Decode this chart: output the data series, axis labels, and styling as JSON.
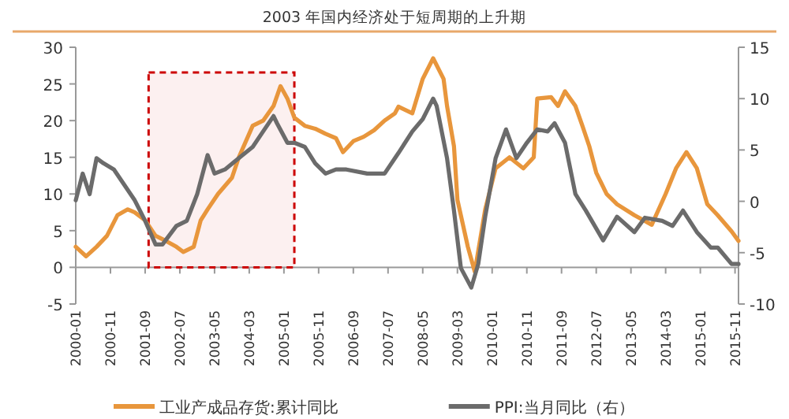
{
  "chart_data": {
    "type": "line",
    "title": "2003 年国内经济处于短周期的上升期",
    "xlim": [
      "2000-01",
      "2015-12"
    ],
    "xticks": [
      "2000-01",
      "2000-11",
      "2001-09",
      "2002-07",
      "2003-05",
      "2004-03",
      "2005-01",
      "2005-11",
      "2006-09",
      "2007-07",
      "2008-05",
      "2009-03",
      "2010-01",
      "2010-11",
      "2011-09",
      "2012-07",
      "2013-05",
      "2014-03",
      "2015-01",
      "2015-11"
    ],
    "ylim": [
      -5,
      30
    ],
    "yticks": [
      -5,
      0,
      5,
      10,
      15,
      20,
      25,
      30
    ],
    "y2lim": [
      -10,
      15
    ],
    "y2ticks": [
      -10,
      -5,
      0,
      5,
      10,
      15
    ],
    "legend": "bottom",
    "marker": "none",
    "line_style": "solid",
    "bands": [
      {
        "axis": "x",
        "from": "2001-10",
        "to": "2005-04",
        "color": "#cc0000"
      }
    ],
    "series": [
      {
        "name": "工业产成品存货:累计同比",
        "color": "#e8963c",
        "x": [
          "2000-01",
          "2000-04",
          "2000-07",
          "2000-10",
          "2001-01",
          "2001-04",
          "2001-06",
          "2001-09",
          "2001-12",
          "2002-03",
          "2002-06",
          "2002-08",
          "2002-11",
          "2003-01",
          "2003-03",
          "2003-06",
          "2003-10",
          "2003-12",
          "2004-04",
          "2004-07",
          "2004-10",
          "2004-12",
          "2005-02",
          "2005-04",
          "2005-07",
          "2005-10",
          "2006-01",
          "2006-04",
          "2006-06",
          "2006-09",
          "2006-12",
          "2007-03",
          "2007-06",
          "2007-09",
          "2007-10",
          "2008-02",
          "2008-05",
          "2008-08",
          "2008-11",
          "2008-12",
          "2009-02",
          "2009-03",
          "2009-06",
          "2009-08",
          "2009-11",
          "2010-02",
          "2010-06",
          "2010-10",
          "2011-01",
          "2011-02",
          "2011-06",
          "2011-08",
          "2011-10",
          "2012-01",
          "2012-03",
          "2012-05",
          "2012-07",
          "2012-10",
          "2013-01",
          "2013-06",
          "2013-11",
          "2014-03",
          "2014-06",
          "2014-09",
          "2014-12",
          "2015-03",
          "2015-06",
          "2015-10",
          "2015-12"
        ],
        "values": [
          2.8,
          1.5,
          2.8,
          4.3,
          7.1,
          7.9,
          7.5,
          6.4,
          4.3,
          3.6,
          2.8,
          2.1,
          2.8,
          6.4,
          7.9,
          10,
          12.2,
          15,
          19.3,
          20,
          22,
          24.7,
          23,
          20.4,
          19.3,
          18.9,
          18.2,
          17.6,
          15.7,
          17.2,
          17.8,
          18.7,
          20,
          21,
          21.9,
          21,
          25.7,
          28.5,
          25.7,
          22,
          16.5,
          9.2,
          2.8,
          -0.6,
          7.9,
          13.5,
          15,
          13.5,
          15,
          23,
          23.2,
          22,
          24,
          22,
          19.3,
          16.5,
          12.9,
          10,
          8.6,
          7.1,
          5.8,
          10,
          13.5,
          15.7,
          13.5,
          8.6,
          7.1,
          4.9,
          3.6
        ]
      },
      {
        "name": "PPI:当月同比（右）",
        "color": "#6b6b6b",
        "axis": "y2",
        "x": [
          "2000-01",
          "2000-03",
          "2000-05",
          "2000-07",
          "2000-09",
          "2000-12",
          "2001-03",
          "2001-06",
          "2001-09",
          "2001-12",
          "2002-02",
          "2002-06",
          "2002-09",
          "2002-12",
          "2003-03",
          "2003-05",
          "2003-08",
          "2003-12",
          "2004-04",
          "2004-07",
          "2004-10",
          "2004-11",
          "2005-02",
          "2005-04",
          "2005-07",
          "2005-10",
          "2006-01",
          "2006-04",
          "2006-07",
          "2007-01",
          "2007-06",
          "2007-10",
          "2008-02",
          "2008-05",
          "2008-08",
          "2008-09",
          "2008-12",
          "2009-02",
          "2009-04",
          "2009-07",
          "2009-09",
          "2009-11",
          "2010-02",
          "2010-05",
          "2010-08",
          "2010-11",
          "2011-02",
          "2011-05",
          "2011-07",
          "2011-10",
          "2012-01",
          "2012-04",
          "2012-09",
          "2013-01",
          "2013-06",
          "2013-09",
          "2014-02",
          "2014-05",
          "2014-08",
          "2014-12",
          "2015-04",
          "2015-06",
          "2015-10",
          "2015-12"
        ],
        "values": [
          0.1,
          2.7,
          0.7,
          4.2,
          3.7,
          3.1,
          1.6,
          0.1,
          -1.9,
          -4.2,
          -4.2,
          -2.4,
          -1.9,
          0.7,
          4.5,
          2.7,
          3.1,
          4.2,
          5.3,
          6.8,
          8.3,
          7.6,
          5.7,
          5.7,
          5.3,
          3.7,
          2.7,
          3.1,
          3.1,
          2.7,
          2.7,
          4.7,
          6.8,
          8.0,
          10.0,
          9.3,
          4.2,
          -0.9,
          -6.5,
          -8.4,
          -6.1,
          -1.5,
          4.2,
          7.0,
          4.2,
          5.7,
          7.0,
          6.8,
          7.6,
          5.7,
          0.7,
          -0.9,
          -3.8,
          -1.5,
          -3.0,
          -1.6,
          -1.9,
          -2.4,
          -0.9,
          -3.0,
          -4.5,
          -4.5,
          -6.1,
          -6.1
        ]
      }
    ]
  }
}
